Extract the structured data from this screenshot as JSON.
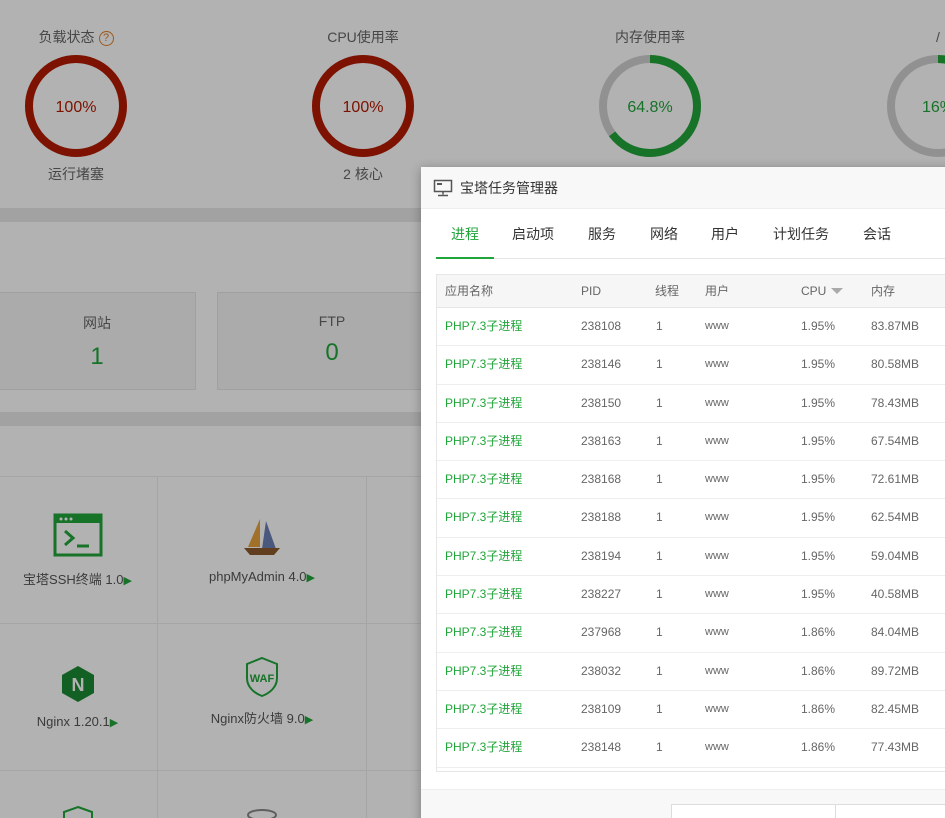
{
  "gauges": [
    {
      "title": "负载状态",
      "value": "100%",
      "sub": "运行堵塞",
      "percent": 100,
      "color": "#b31b00"
    },
    {
      "title": "CPU使用率",
      "value": "100%",
      "sub": "2 核心",
      "percent": 100,
      "color": "#b31b00"
    },
    {
      "title": "内存使用率",
      "value": "64.8%",
      "sub": "",
      "percent": 64.8,
      "color": "#20a53a"
    },
    {
      "title": "/",
      "value": "16%",
      "sub": "",
      "percent": 16,
      "color": "#20a53a"
    }
  ],
  "stats": [
    {
      "label": "网站",
      "value": "1"
    },
    {
      "label": "FTP",
      "value": "0"
    }
  ],
  "software": [
    {
      "name": "宝塔SSH终端 1.0",
      "icon": "terminal-icon"
    },
    {
      "name": "phpMyAdmin 4.0",
      "icon": "sailboat-icon"
    },
    {
      "name": "Nginx 1.20.1",
      "icon": "nginx-icon"
    },
    {
      "name": "Nginx防火墙 9.0",
      "icon": "waf-shield-icon"
    }
  ],
  "dialog": {
    "title": "宝塔任务管理器",
    "tabs": [
      "进程",
      "启动项",
      "服务",
      "网络",
      "用户",
      "计划任务",
      "会话"
    ],
    "active_tab": 0,
    "columns": [
      "应用名称",
      "PID",
      "线程",
      "用户",
      "CPU",
      "内存"
    ],
    "sort_column": "CPU",
    "rows": [
      {
        "name": "PHP7.3子进程",
        "pid": "238108",
        "threads": "1",
        "user": "www",
        "cpu": "1.95%",
        "mem": "83.87MB"
      },
      {
        "name": "PHP7.3子进程",
        "pid": "238146",
        "threads": "1",
        "user": "www",
        "cpu": "1.95%",
        "mem": "80.58MB"
      },
      {
        "name": "PHP7.3子进程",
        "pid": "238150",
        "threads": "1",
        "user": "www",
        "cpu": "1.95%",
        "mem": "78.43MB"
      },
      {
        "name": "PHP7.3子进程",
        "pid": "238163",
        "threads": "1",
        "user": "www",
        "cpu": "1.95%",
        "mem": "67.54MB"
      },
      {
        "name": "PHP7.3子进程",
        "pid": "238168",
        "threads": "1",
        "user": "www",
        "cpu": "1.95%",
        "mem": "72.61MB"
      },
      {
        "name": "PHP7.3子进程",
        "pid": "238188",
        "threads": "1",
        "user": "www",
        "cpu": "1.95%",
        "mem": "62.54MB"
      },
      {
        "name": "PHP7.3子进程",
        "pid": "238194",
        "threads": "1",
        "user": "www",
        "cpu": "1.95%",
        "mem": "59.04MB"
      },
      {
        "name": "PHP7.3子进程",
        "pid": "238227",
        "threads": "1",
        "user": "www",
        "cpu": "1.95%",
        "mem": "40.58MB"
      },
      {
        "name": "PHP7.3子进程",
        "pid": "237968",
        "threads": "1",
        "user": "www",
        "cpu": "1.86%",
        "mem": "84.04MB"
      },
      {
        "name": "PHP7.3子进程",
        "pid": "238032",
        "threads": "1",
        "user": "www",
        "cpu": "1.86%",
        "mem": "89.72MB"
      },
      {
        "name": "PHP7.3子进程",
        "pid": "238109",
        "threads": "1",
        "user": "www",
        "cpu": "1.86%",
        "mem": "82.45MB"
      },
      {
        "name": "PHP7.3子进程",
        "pid": "238148",
        "threads": "1",
        "user": "www",
        "cpu": "1.86%",
        "mem": "77.43MB"
      }
    ]
  },
  "colors": {
    "accent": "#20a53a",
    "danger": "#b31b00"
  }
}
